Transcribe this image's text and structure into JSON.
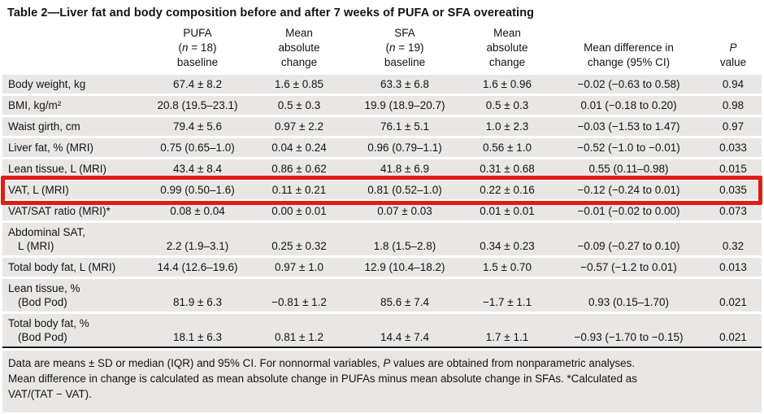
{
  "title": "Table 2—Liver fat and body composition before and after 7 weeks of PUFA or SFA overeating",
  "columns": [
    {
      "lines": []
    },
    {
      "lines": [
        "PUFA",
        "(n = 18)",
        "baseline"
      ]
    },
    {
      "lines": [
        "Mean",
        "absolute",
        "change"
      ]
    },
    {
      "lines": [
        "SFA",
        "(n = 19)",
        "baseline"
      ]
    },
    {
      "lines": [
        "Mean",
        "absolute",
        "change"
      ]
    },
    {
      "lines": [
        "Mean difference in",
        "change (95% CI)"
      ]
    },
    {
      "lines": [
        "P",
        "value"
      ]
    }
  ],
  "rows": [
    {
      "label": [
        "Body weight, kg"
      ],
      "values": [
        "67.4 ± 8.2",
        "1.6 ± 0.85",
        "63.3 ± 6.8",
        "1.6 ± 0.96",
        "−0.02 (−0.63 to 0.58)",
        "0.94"
      ],
      "highlight": false
    },
    {
      "label": [
        "BMI, kg/m²"
      ],
      "values": [
        "20.8 (19.5–23.1)",
        "0.5 ± 0.3",
        "19.9 (18.9–20.7)",
        "0.5 ± 0.3",
        "0.01 (−0.18 to 0.20)",
        "0.98"
      ],
      "highlight": false
    },
    {
      "label": [
        "Waist girth, cm"
      ],
      "values": [
        "79.4 ± 5.6",
        "0.97 ± 2.2",
        "76.1 ± 5.1",
        "1.0 ± 2.3",
        "−0.03 (−1.53 to 1.47)",
        "0.97"
      ],
      "highlight": false
    },
    {
      "label": [
        "Liver fat, % (MRI)"
      ],
      "values": [
        "0.75 (0.65–1.0)",
        "0.04 ± 0.24",
        "0.96 (0.79–1.1)",
        "0.56 ± 1.0",
        "−0.52 (−1.0 to −0.01)",
        "0.033"
      ],
      "highlight": false
    },
    {
      "label": [
        "Lean tissue, L (MRI)"
      ],
      "values": [
        "43.4 ± 8.4",
        "0.86 ± 0.62",
        "41.8 ± 6.9",
        "0.31 ± 0.68",
        "0.55 (0.11–0.98)",
        "0.015"
      ],
      "highlight": false
    },
    {
      "label": [
        "VAT, L (MRI)"
      ],
      "values": [
        "0.99 (0.50–1.6)",
        "0.11 ± 0.21",
        "0.81 (0.52–1.0)",
        "0.22 ± 0.16",
        "−0.12 (−0.24 to 0.01)",
        "0.035"
      ],
      "highlight": true
    },
    {
      "label": [
        "VAT/SAT ratio (MRI)*"
      ],
      "values": [
        "0.08 ± 0.04",
        "0.00 ± 0.01",
        "0.07 ± 0.03",
        "0.01 ± 0.01",
        "−0.01 (−0.02 to 0.00)",
        "0.073"
      ],
      "highlight": false
    },
    {
      "label": [
        "Abdominal SAT,",
        "L (MRI)"
      ],
      "values": [
        "2.2 (1.9–3.1)",
        "0.25 ± 0.32",
        "1.8 (1.5–2.8)",
        "0.34 ± 0.23",
        "−0.09 (−0.27 to 0.10)",
        "0.32"
      ],
      "highlight": false
    },
    {
      "label": [
        "Total body fat, L (MRI)"
      ],
      "values": [
        "14.4 (12.6–19.6)",
        "0.97 ± 1.0",
        "12.9 (10.4–18.2)",
        "1.5 ± 0.70",
        "−0.57 (−1.2 to 0.01)",
        "0.013"
      ],
      "highlight": false
    },
    {
      "label": [
        "Lean tissue, %",
        "(Bod Pod)"
      ],
      "values": [
        "81.9 ± 6.3",
        "−0.81 ± 1.2",
        "85.6 ± 7.4",
        "−1.7 ± 1.1",
        "0.93 (0.15–1.70)",
        "0.021"
      ],
      "highlight": false
    },
    {
      "label": [
        "Total body fat, %",
        "(Bod Pod)"
      ],
      "values": [
        "18.1 ± 6.3",
        "0.81 ± 1.2",
        "14.4 ± 7.4",
        "1.7 ± 1.1",
        "−0.93 (−1.70 to −0.15)",
        "0.021"
      ],
      "highlight": false
    }
  ],
  "footnote_lines": [
    "Data are means ± SD or median (IQR) and 95% CI. For nonnormal variables, P values are obtained from nonparametric analyses.",
    "Mean difference in change is calculated as mean absolute change in PUFAs minus mean absolute change in SFAs. *Calculated as",
    "VAT/(TAT − VAT)."
  ],
  "colors": {
    "highlight_box": "#de1c18",
    "row_background": "#e9e7e5",
    "rule": "#161616",
    "text": "#131313"
  }
}
